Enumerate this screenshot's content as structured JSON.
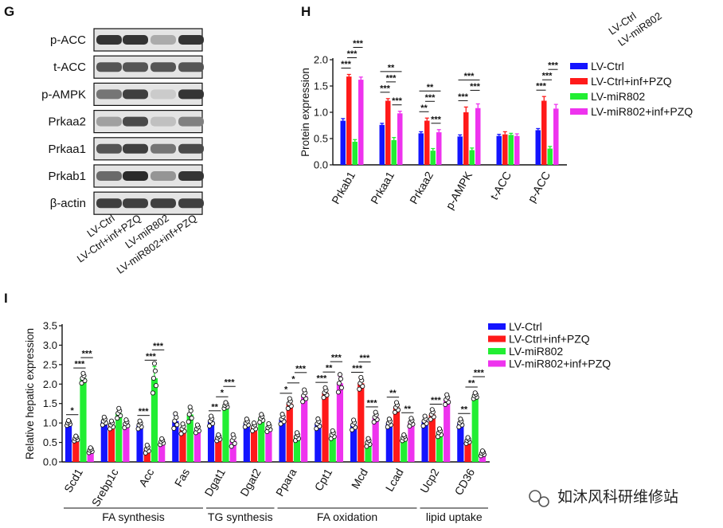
{
  "colors": {
    "blue": "#1414ff",
    "red": "#ff1a1a",
    "green": "#22ee33",
    "magenta": "#ee33ee"
  },
  "panel_g": {
    "letter": "G",
    "rows": [
      "p-ACC",
      "t-ACC",
      "p-AMPK",
      "Prkaa2",
      "Prkaa1",
      "Prkab1",
      "β-actin"
    ],
    "lanes": [
      "LV-Ctrl",
      "LV-Ctrl+inf+PZQ",
      "LV-miR802",
      "LV-miR802+inf+PZQ"
    ],
    "band_intensity": [
      [
        0.85,
        0.85,
        0.3,
        0.85
      ],
      [
        0.7,
        0.7,
        0.7,
        0.7
      ],
      [
        0.55,
        0.8,
        0.15,
        0.85
      ],
      [
        0.35,
        0.75,
        0.2,
        0.5
      ],
      [
        0.7,
        0.8,
        0.55,
        0.75
      ],
      [
        0.6,
        0.9,
        0.4,
        0.85
      ],
      [
        0.8,
        0.8,
        0.8,
        0.8
      ]
    ]
  },
  "panel_h_cutoff_labels": [
    "LV-Ctrl",
    "LV-miR802"
  ],
  "chart_data": [
    {
      "panel": "H",
      "type": "bar",
      "title": "",
      "xlabel": "",
      "ylabel": "Protein expression",
      "ylim": [
        0,
        2.0
      ],
      "yticks": [
        "0.0",
        "0.5",
        "1.0",
        "1.5",
        "2.0"
      ],
      "categories": [
        "Prkab1",
        "Prkaa1",
        "Prkaa2",
        "p-AMPK",
        "t-ACC",
        "p-ACC"
      ],
      "series": [
        {
          "name": "LV-Ctrl",
          "color": "#1414ff",
          "values": [
            0.84,
            0.76,
            0.6,
            0.54,
            0.55,
            0.66
          ],
          "err": [
            0.04,
            0.03,
            0.03,
            0.03,
            0.03,
            0.03
          ]
        },
        {
          "name": "LV-Ctrl+inf+PZQ",
          "color": "#ff1a1a",
          "values": [
            1.68,
            1.22,
            0.84,
            1.0,
            0.58,
            1.22
          ],
          "err": [
            0.04,
            0.04,
            0.05,
            0.1,
            0.05,
            0.08
          ]
        },
        {
          "name": "LV-miR802",
          "color": "#22ee33",
          "values": [
            0.44,
            0.47,
            0.27,
            0.28,
            0.57,
            0.31
          ],
          "err": [
            0.04,
            0.05,
            0.04,
            0.04,
            0.03,
            0.04
          ]
        },
        {
          "name": "LV-miR802+inf+PZQ",
          "color": "#ee33ee",
          "values": [
            1.62,
            0.98,
            0.62,
            1.08,
            0.55,
            1.07
          ],
          "err": [
            0.05,
            0.04,
            0.05,
            0.08,
            0.04,
            0.08
          ]
        }
      ],
      "significance": [
        {
          "cat": 0,
          "from": 0,
          "to": 1,
          "label": "***"
        },
        {
          "cat": 0,
          "from": 1,
          "to": 2,
          "label": "***"
        },
        {
          "cat": 0,
          "from": 2,
          "to": 3,
          "label": "***"
        },
        {
          "cat": 1,
          "from": 0,
          "to": 1,
          "label": "***"
        },
        {
          "cat": 1,
          "from": 1,
          "to": 2,
          "label": "***"
        },
        {
          "cat": 1,
          "from": 2,
          "to": 3,
          "label": "***"
        },
        {
          "cat": 1,
          "from": 0,
          "to": 3,
          "label": "**"
        },
        {
          "cat": 2,
          "from": 0,
          "to": 1,
          "label": "**"
        },
        {
          "cat": 2,
          "from": 1,
          "to": 2,
          "label": "***"
        },
        {
          "cat": 2,
          "from": 2,
          "to": 3,
          "label": "***"
        },
        {
          "cat": 2,
          "from": 0,
          "to": 3,
          "label": "**"
        },
        {
          "cat": 3,
          "from": 0,
          "to": 1,
          "label": "***"
        },
        {
          "cat": 3,
          "from": 2,
          "to": 3,
          "label": "***"
        },
        {
          "cat": 3,
          "from": 0,
          "to": 3,
          "label": "***"
        },
        {
          "cat": 5,
          "from": 0,
          "to": 1,
          "label": "***"
        },
        {
          "cat": 5,
          "from": 1,
          "to": 2,
          "label": "***"
        },
        {
          "cat": 5,
          "from": 2,
          "to": 3,
          "label": "***"
        }
      ],
      "legend": [
        "LV-Ctrl",
        "LV-Ctrl+inf+PZQ",
        "LV-miR802",
        "LV-miR802+inf+PZQ"
      ]
    },
    {
      "panel": "I",
      "type": "bar",
      "title": "",
      "xlabel": "",
      "ylabel": "Relative hepatic expression",
      "ylim": [
        0,
        3.5
      ],
      "yticks": [
        "0.0",
        "0.5",
        "1.0",
        "1.5",
        "2.0",
        "2.5",
        "3.0",
        "3.5"
      ],
      "categories": [
        "Scd1",
        "Srebp1c",
        "Acc",
        "Fas",
        "Dgat1",
        "Dgat2",
        "Ppara",
        "Cpt1",
        "Mcd",
        "Lcad",
        "Ucp2",
        "CD36"
      ],
      "series": [
        {
          "name": "LV-Ctrl",
          "color": "#1414ff",
          "values": [
            1.0,
            1.05,
            0.95,
            1.05,
            1.05,
            1.0,
            1.1,
            0.98,
            0.95,
            1.0,
            1.05,
            1.0
          ],
          "err": [
            0.05,
            0.08,
            0.08,
            0.15,
            0.1,
            0.08,
            0.1,
            0.1,
            0.1,
            0.08,
            0.1,
            0.08
          ]
        },
        {
          "name": "LV-Ctrl+inf+PZQ",
          "color": "#ff1a1a",
          "values": [
            0.6,
            0.95,
            0.33,
            0.85,
            0.62,
            0.9,
            1.5,
            1.78,
            2.02,
            1.4,
            1.22,
            0.55
          ],
          "err": [
            0.05,
            0.08,
            0.08,
            0.1,
            0.06,
            0.08,
            0.1,
            0.1,
            0.12,
            0.1,
            0.1,
            0.06
          ]
        },
        {
          "name": "LV-miR802",
          "color": "#22ee33",
          "values": [
            2.15,
            1.25,
            2.15,
            1.22,
            1.45,
            1.12,
            0.65,
            0.7,
            0.5,
            0.62,
            0.75,
            1.7
          ],
          "err": [
            0.1,
            0.1,
            0.3,
            0.15,
            0.06,
            0.08,
            0.08,
            0.08,
            0.08,
            0.06,
            0.08,
            0.06
          ]
        },
        {
          "name": "LV-miR802+inf+PZQ",
          "color": "#ee33ee",
          "values": [
            0.3,
            0.98,
            0.52,
            0.85,
            0.55,
            0.88,
            1.7,
            2.02,
            1.15,
            1.02,
            1.6,
            0.22
          ],
          "err": [
            0.05,
            0.08,
            0.06,
            0.08,
            0.12,
            0.08,
            0.12,
            0.18,
            0.1,
            0.08,
            0.1,
            0.05
          ]
        }
      ],
      "significance": [
        {
          "cat": 0,
          "from": 0,
          "to": 1,
          "label": "*"
        },
        {
          "cat": 0,
          "from": 1,
          "to": 2,
          "label": "***"
        },
        {
          "cat": 0,
          "from": 2,
          "to": 3,
          "label": "***"
        },
        {
          "cat": 2,
          "from": 0,
          "to": 1,
          "label": "***"
        },
        {
          "cat": 2,
          "from": 1,
          "to": 2,
          "label": "***"
        },
        {
          "cat": 2,
          "from": 2,
          "to": 3,
          "label": "***"
        },
        {
          "cat": 4,
          "from": 0,
          "to": 1,
          "label": "**"
        },
        {
          "cat": 4,
          "from": 1,
          "to": 2,
          "label": "*"
        },
        {
          "cat": 4,
          "from": 2,
          "to": 3,
          "label": "***"
        },
        {
          "cat": 6,
          "from": 0,
          "to": 1,
          "label": "*"
        },
        {
          "cat": 6,
          "from": 1,
          "to": 2,
          "label": "*"
        },
        {
          "cat": 6,
          "from": 2,
          "to": 3,
          "label": "***"
        },
        {
          "cat": 7,
          "from": 0,
          "to": 1,
          "label": "***"
        },
        {
          "cat": 7,
          "from": 1,
          "to": 2,
          "label": "**"
        },
        {
          "cat": 7,
          "from": 2,
          "to": 3,
          "label": "***"
        },
        {
          "cat": 8,
          "from": 0,
          "to": 1,
          "label": "***"
        },
        {
          "cat": 8,
          "from": 1,
          "to": 2,
          "label": "***"
        },
        {
          "cat": 8,
          "from": 2,
          "to": 3,
          "label": "***"
        },
        {
          "cat": 9,
          "from": 0,
          "to": 1,
          "label": "**"
        },
        {
          "cat": 9,
          "from": 2,
          "to": 3,
          "label": "**"
        },
        {
          "cat": 10,
          "from": 1,
          "to": 2,
          "label": "***"
        },
        {
          "cat": 11,
          "from": 0,
          "to": 1,
          "label": "**"
        },
        {
          "cat": 11,
          "from": 1,
          "to": 2,
          "label": "**"
        },
        {
          "cat": 11,
          "from": 2,
          "to": 3,
          "label": "***"
        }
      ],
      "groups": [
        {
          "label": "FA synthesis",
          "start": 0,
          "end": 3
        },
        {
          "label": "TG synthesis",
          "start": 4,
          "end": 5
        },
        {
          "label": "FA oxidation",
          "start": 6,
          "end": 9
        },
        {
          "label": "lipid uptake",
          "start": 10,
          "end": 11
        }
      ],
      "legend": [
        "LV-Ctrl",
        "LV-Ctrl+inf+PZQ",
        "LV-miR802",
        "LV-miR802+inf+PZQ"
      ]
    }
  ],
  "watermark": {
    "text": "如沐风科研维修站",
    "icon": "wechat-icon"
  }
}
